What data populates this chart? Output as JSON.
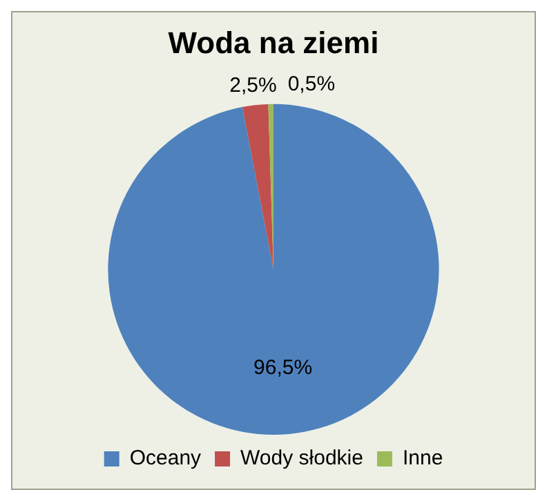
{
  "chart_data": {
    "type": "pie",
    "title": "Woda na ziemi",
    "categories": [
      "Oceany",
      "Wody słodkie",
      "Inne"
    ],
    "values": [
      96.5,
      2.5,
      0.5
    ],
    "colors": [
      "#4f81bd",
      "#c0504d",
      "#9bbb59"
    ],
    "value_labels": [
      "96,5%",
      "2,5%",
      "0,5%"
    ],
    "legend": "bottom"
  }
}
